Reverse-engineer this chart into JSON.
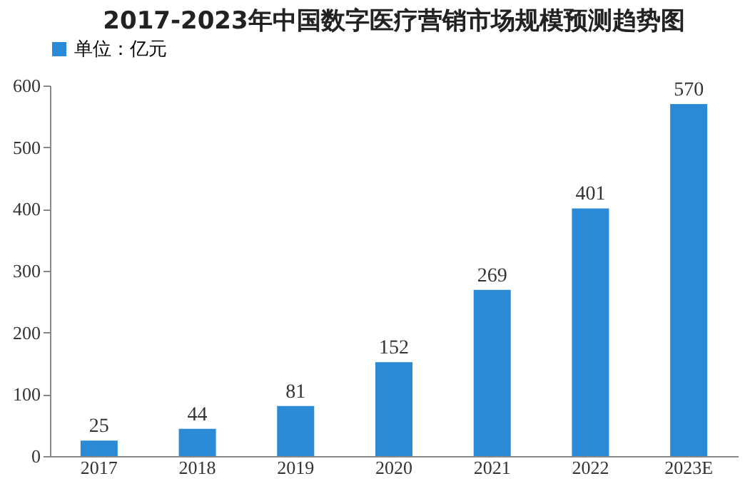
{
  "chart_data": {
    "type": "bar",
    "title": "2017-2023年中国数字医疗营销市场规模预测趋势图",
    "categories": [
      "2017",
      "2018",
      "2019",
      "2020",
      "2021",
      "2022",
      "2023E"
    ],
    "series": [
      {
        "name": "单位：亿元",
        "color": "#2b8ad6",
        "values": [
          25,
          44,
          81,
          152,
          269,
          401,
          570
        ]
      }
    ],
    "ylim": [
      0,
      600
    ],
    "yticks": [
      0,
      100,
      200,
      300,
      400,
      500,
      600
    ],
    "data_labels": true,
    "grid": false,
    "legend": "top"
  }
}
